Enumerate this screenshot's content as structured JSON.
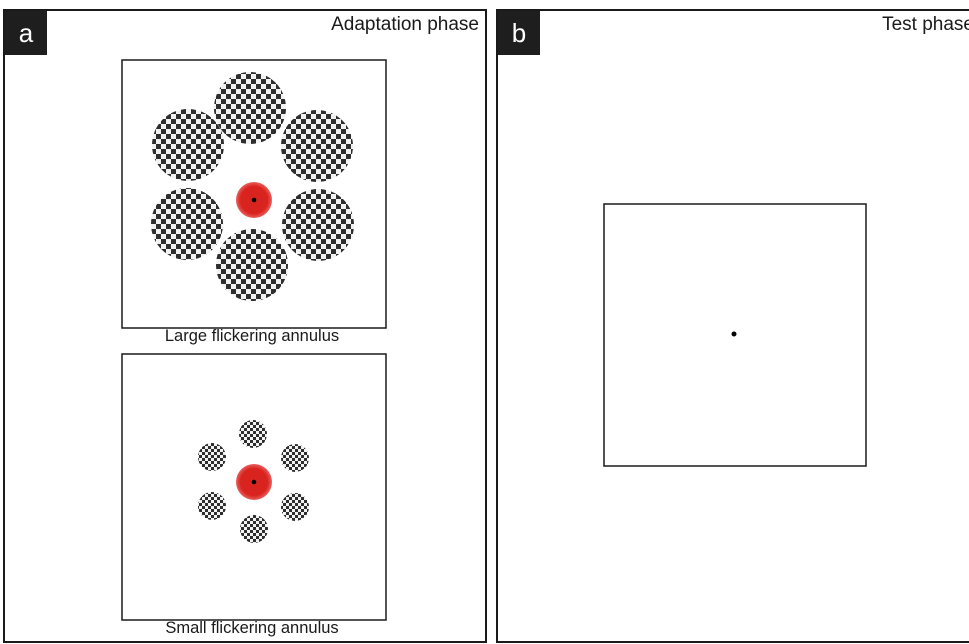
{
  "panel_a": {
    "letter": "a",
    "phase_label": "Adaptation phase",
    "large_caption": "Large flickering annulus",
    "small_caption": "Small flickering annulus"
  },
  "panel_b": {
    "letter": "b",
    "phase_label": "Test phase"
  },
  "colors": {
    "frame": "#1a1a1a",
    "fixation_ring": "#d9231f",
    "checker_dark": "#2e2e2e",
    "checker_light": "#f2f2f2"
  },
  "stimuli": {
    "large_annulus_disc_count": 6,
    "small_annulus_disc_count": 6
  }
}
